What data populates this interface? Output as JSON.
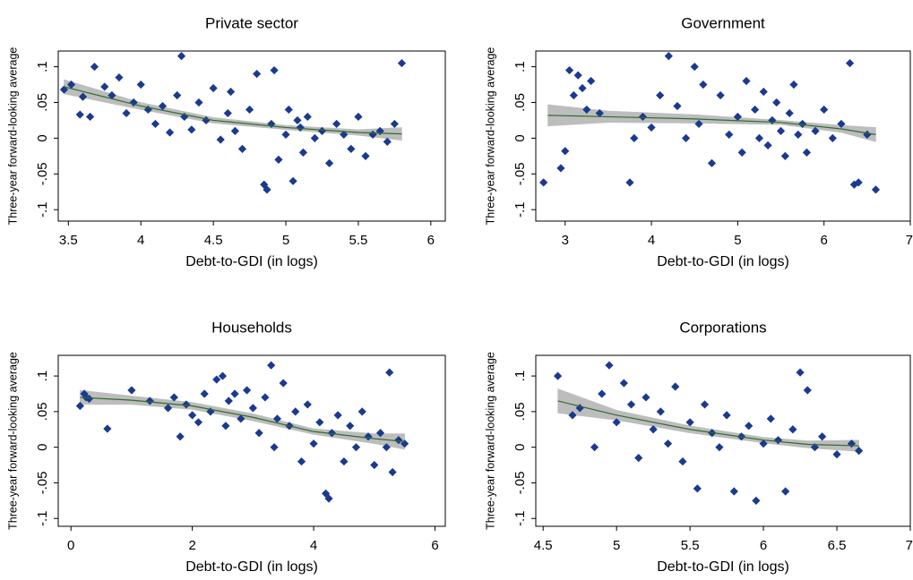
{
  "chart_data": [
    {
      "type": "scatter",
      "title": "Private sector",
      "x_label": "Debt-to-GDI (in logs)",
      "y_label": "Three-year forward-looking average",
      "color": "#1a3a8f",
      "x": [
        3.47,
        3.52,
        3.58,
        3.6,
        3.65,
        3.68,
        3.75,
        3.8,
        3.85,
        3.9,
        3.95,
        4.0,
        4.05,
        4.1,
        4.15,
        4.2,
        4.25,
        4.28,
        4.3,
        4.35,
        4.4,
        4.45,
        4.5,
        4.55,
        4.6,
        4.62,
        4.65,
        4.7,
        4.75,
        4.8,
        4.85,
        4.87,
        4.9,
        4.92,
        4.95,
        5.0,
        5.02,
        5.05,
        5.08,
        5.1,
        5.12,
        5.15,
        5.2,
        5.25,
        5.3,
        5.35,
        5.4,
        5.45,
        5.5,
        5.55,
        5.6,
        5.65,
        5.7,
        5.75,
        5.8
      ],
      "y": [
        0.068,
        0.075,
        0.033,
        0.058,
        0.03,
        0.1,
        0.072,
        0.06,
        0.085,
        0.035,
        0.05,
        0.075,
        0.04,
        0.02,
        0.045,
        0.008,
        0.06,
        0.115,
        0.03,
        0.012,
        0.05,
        0.025,
        0.07,
        -0.002,
        0.035,
        0.065,
        0.01,
        -0.015,
        0.04,
        0.09,
        -0.065,
        -0.072,
        0.02,
        0.095,
        -0.03,
        0.005,
        0.04,
        -0.06,
        0.025,
        0.015,
        -0.02,
        0.03,
        0.0,
        0.01,
        -0.035,
        0.02,
        0.005,
        -0.015,
        0.03,
        -0.025,
        0.005,
        0.01,
        -0.005,
        0.02,
        0.105
      ],
      "fit": {
        "color": "#2e6b2e",
        "band_color": "#bdbdbd",
        "x": [
          3.47,
          4,
          4.5,
          5,
          5.5,
          5.8
        ],
        "y": [
          0.072,
          0.045,
          0.025,
          0.015,
          0.008,
          0.006
        ],
        "lower": [
          0.062,
          0.04,
          0.021,
          0.012,
          0.004,
          -0.003
        ],
        "upper": [
          0.082,
          0.05,
          0.029,
          0.018,
          0.012,
          0.015
        ]
      },
      "xlim": [
        3.43,
        6.1
      ],
      "ylim": [
        -0.116,
        0.122
      ],
      "xticks": [
        3.5,
        4,
        4.5,
        5,
        5.5,
        6
      ],
      "yticks": [
        {
          "value": -0.1,
          "label": "-.1"
        },
        {
          "value": -0.05,
          "label": "-.05"
        },
        0,
        {
          "value": 0.05,
          "label": ".05"
        },
        {
          "value": 0.1,
          "label": ".1"
        }
      ]
    },
    {
      "type": "scatter",
      "title": "Government",
      "x_label": "Debt-to-GDI (in logs)",
      "y_label": "Three-year forward-looking average",
      "color": "#1a3a8f",
      "x": [
        2.75,
        2.95,
        3.0,
        3.05,
        3.1,
        3.15,
        3.2,
        3.25,
        3.3,
        3.4,
        3.75,
        3.8,
        3.9,
        4.0,
        4.1,
        4.2,
        4.3,
        4.4,
        4.5,
        4.55,
        4.6,
        4.7,
        4.8,
        4.9,
        5.0,
        5.05,
        5.1,
        5.2,
        5.25,
        5.3,
        5.35,
        5.4,
        5.45,
        5.5,
        5.55,
        5.6,
        5.65,
        5.7,
        5.75,
        5.8,
        5.9,
        6.0,
        6.1,
        6.2,
        6.3,
        6.35,
        6.4,
        6.5,
        6.6
      ],
      "y": [
        -0.062,
        -0.042,
        -0.018,
        0.095,
        0.06,
        0.088,
        0.07,
        0.04,
        0.08,
        0.035,
        -0.062,
        0.0,
        0.03,
        0.015,
        0.06,
        0.115,
        0.045,
        0.0,
        0.1,
        0.02,
        0.075,
        -0.035,
        0.06,
        0.005,
        0.03,
        -0.02,
        0.08,
        0.04,
        0.0,
        0.065,
        -0.01,
        0.025,
        0.05,
        0.01,
        -0.025,
        0.035,
        0.075,
        0.005,
        0.02,
        -0.02,
        0.01,
        0.04,
        0.0,
        0.02,
        0.105,
        -0.065,
        -0.062,
        0.005,
        -0.072
      ],
      "fit": {
        "color": "#2e6b2e",
        "band_color": "#bdbdbd",
        "x": [
          2.8,
          3.5,
          4.5,
          5.5,
          6.2,
          6.6
        ],
        "y": [
          0.032,
          0.03,
          0.027,
          0.022,
          0.013,
          0.005
        ],
        "lower": [
          0.017,
          0.022,
          0.021,
          0.019,
          0.008,
          -0.005
        ],
        "upper": [
          0.047,
          0.038,
          0.033,
          0.025,
          0.018,
          0.015
        ]
      },
      "xlim": [
        2.66,
        7.0
      ],
      "ylim": [
        -0.116,
        0.122
      ],
      "xticks": [
        3,
        4,
        5,
        6,
        7
      ],
      "yticks": [
        {
          "value": -0.1,
          "label": "-.1"
        },
        {
          "value": -0.05,
          "label": "-.05"
        },
        0,
        {
          "value": 0.05,
          "label": ".05"
        },
        {
          "value": 0.1,
          "label": ".1"
        }
      ]
    },
    {
      "type": "scatter",
      "title": "Households",
      "x_label": "Debt-to-GDI (in logs)",
      "y_label": "Three-year forward-looking average",
      "color": "#1a3a8f",
      "x": [
        0.15,
        0.22,
        0.25,
        0.3,
        0.6,
        1.0,
        1.3,
        1.6,
        1.7,
        1.8,
        1.9,
        2.0,
        2.1,
        2.2,
        2.3,
        2.4,
        2.5,
        2.55,
        2.6,
        2.7,
        2.8,
        2.9,
        3.0,
        3.1,
        3.2,
        3.3,
        3.35,
        3.4,
        3.5,
        3.6,
        3.7,
        3.8,
        3.9,
        4.0,
        4.1,
        4.2,
        4.25,
        4.3,
        4.4,
        4.5,
        4.6,
        4.7,
        4.8,
        4.9,
        5.0,
        5.1,
        5.2,
        5.25,
        5.3,
        5.4,
        5.5
      ],
      "y": [
        0.058,
        0.075,
        0.07,
        0.068,
        0.026,
        0.08,
        0.065,
        0.055,
        0.07,
        0.015,
        0.06,
        0.045,
        0.035,
        0.075,
        0.05,
        0.095,
        0.1,
        0.03,
        0.065,
        0.075,
        0.04,
        0.08,
        0.055,
        0.02,
        0.07,
        0.115,
        0.0,
        0.04,
        0.09,
        0.03,
        0.05,
        -0.02,
        0.06,
        0.005,
        0.035,
        -0.065,
        -0.072,
        0.02,
        0.045,
        -0.02,
        0.03,
        0.0,
        0.05,
        0.015,
        -0.025,
        0.02,
        0.0,
        0.105,
        -0.035,
        0.01,
        0.005
      ],
      "fit": {
        "color": "#2e6b2e",
        "band_color": "#bdbdbd",
        "x": [
          0.15,
          1,
          2,
          3,
          4,
          5,
          5.5
        ],
        "y": [
          0.07,
          0.066,
          0.058,
          0.042,
          0.022,
          0.012,
          0.008
        ],
        "lower": [
          0.06,
          0.06,
          0.053,
          0.037,
          0.018,
          0.005,
          -0.003
        ],
        "upper": [
          0.08,
          0.072,
          0.063,
          0.047,
          0.026,
          0.019,
          0.019
        ]
      },
      "xlim": [
        -0.21,
        6.17
      ],
      "ylim": [
        -0.111,
        0.129
      ],
      "xticks": [
        0,
        2,
        4,
        6
      ],
      "yticks": [
        {
          "value": -0.1,
          "label": "-.1"
        },
        {
          "value": -0.05,
          "label": "-.05"
        },
        0,
        {
          "value": 0.05,
          "label": ".05"
        },
        {
          "value": 0.1,
          "label": ".1"
        }
      ]
    },
    {
      "type": "scatter",
      "title": "Corporations",
      "x_label": "Debt-to-GDI (in logs)",
      "y_label": "Three-year forward-looking average",
      "color": "#1a3a8f",
      "x": [
        4.6,
        4.7,
        4.75,
        4.85,
        4.9,
        4.95,
        5.0,
        5.05,
        5.1,
        5.15,
        5.2,
        5.25,
        5.3,
        5.35,
        5.4,
        5.45,
        5.5,
        5.55,
        5.6,
        5.65,
        5.7,
        5.75,
        5.8,
        5.85,
        5.9,
        5.95,
        6.0,
        6.05,
        6.1,
        6.15,
        6.2,
        6.25,
        6.3,
        6.35,
        6.4,
        6.5,
        6.6,
        6.65
      ],
      "y": [
        0.1,
        0.045,
        0.055,
        0.0,
        0.075,
        0.115,
        0.035,
        0.09,
        0.06,
        -0.015,
        0.07,
        0.025,
        0.05,
        0.005,
        0.085,
        -0.02,
        0.035,
        -0.058,
        0.06,
        0.02,
        0.0,
        0.045,
        -0.062,
        0.015,
        0.03,
        -0.075,
        0.005,
        0.04,
        0.01,
        -0.062,
        0.025,
        0.105,
        0.08,
        0.0,
        0.015,
        -0.01,
        0.005,
        -0.005
      ],
      "fit": {
        "color": "#2e6b2e",
        "band_color": "#bdbdbd",
        "x": [
          4.6,
          5,
          5.5,
          6,
          6.3,
          6.65
        ],
        "y": [
          0.065,
          0.045,
          0.025,
          0.01,
          0.004,
          0.002
        ],
        "lower": [
          0.048,
          0.038,
          0.02,
          0.006,
          -0.001,
          -0.006
        ],
        "upper": [
          0.082,
          0.052,
          0.03,
          0.014,
          0.009,
          0.01
        ]
      },
      "xlim": [
        4.45,
        7.0
      ],
      "ylim": [
        -0.111,
        0.129
      ],
      "xticks": [
        4.5,
        5,
        5.5,
        6,
        6.5,
        7
      ],
      "yticks": [
        {
          "value": -0.1,
          "label": "-.1"
        },
        {
          "value": -0.05,
          "label": "-.05"
        },
        0,
        {
          "value": 0.05,
          "label": ".05"
        },
        {
          "value": 0.1,
          "label": ".1"
        }
      ]
    }
  ]
}
